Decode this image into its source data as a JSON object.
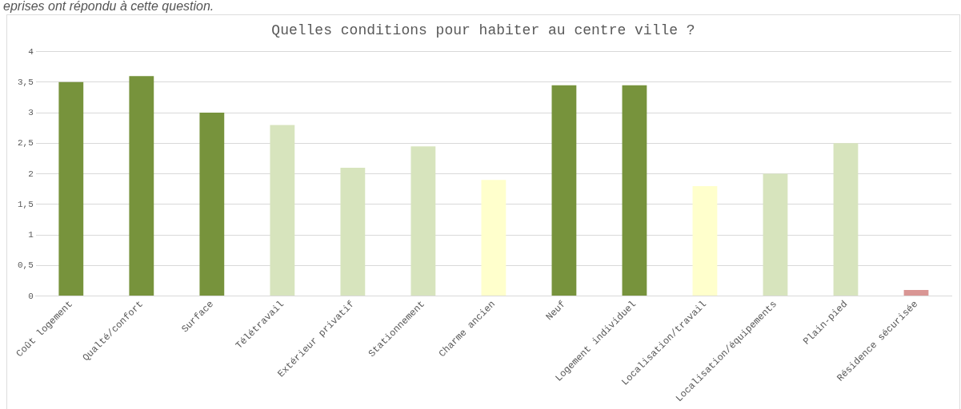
{
  "chart_data": {
    "type": "bar",
    "title": "Quelles conditions pour habiter au centre ville ?",
    "annotations": [
      "eprises ont répondu à cette question."
    ],
    "categories": [
      "Coût logement",
      "Qualté/confort",
      "Surface",
      "Télétravail",
      "Extérieur privatif",
      "Stationnement",
      "Charme ancien",
      "Neuf",
      "Logement individuel",
      "Localisation/travail",
      "Localisation/équipements",
      "Plain-pied",
      "Résidence sécurisée"
    ],
    "values": [
      3.5,
      3.6,
      3.0,
      2.8,
      2.1,
      2.45,
      1.9,
      3.45,
      3.45,
      1.8,
      2.0,
      2.5,
      0.1
    ],
    "colors": [
      "#77933c",
      "#77933c",
      "#77933c",
      "#d7e4bd",
      "#d7e4bd",
      "#d7e4bd",
      "#ffffcc",
      "#77933c",
      "#77933c",
      "#ffffcc",
      "#d7e4bd",
      "#d7e4bd",
      "#d99694"
    ],
    "ylim": [
      0,
      4
    ],
    "yticks": [
      0,
      {
        "value": 0.5,
        "label": "0,5"
      },
      1,
      {
        "value": 1.5,
        "label": "1,5"
      },
      2,
      {
        "value": 2.5,
        "label": "2,5"
      },
      3,
      {
        "value": 3.5,
        "label": "3,5"
      },
      4
    ],
    "grid": "y",
    "legend": false
  }
}
